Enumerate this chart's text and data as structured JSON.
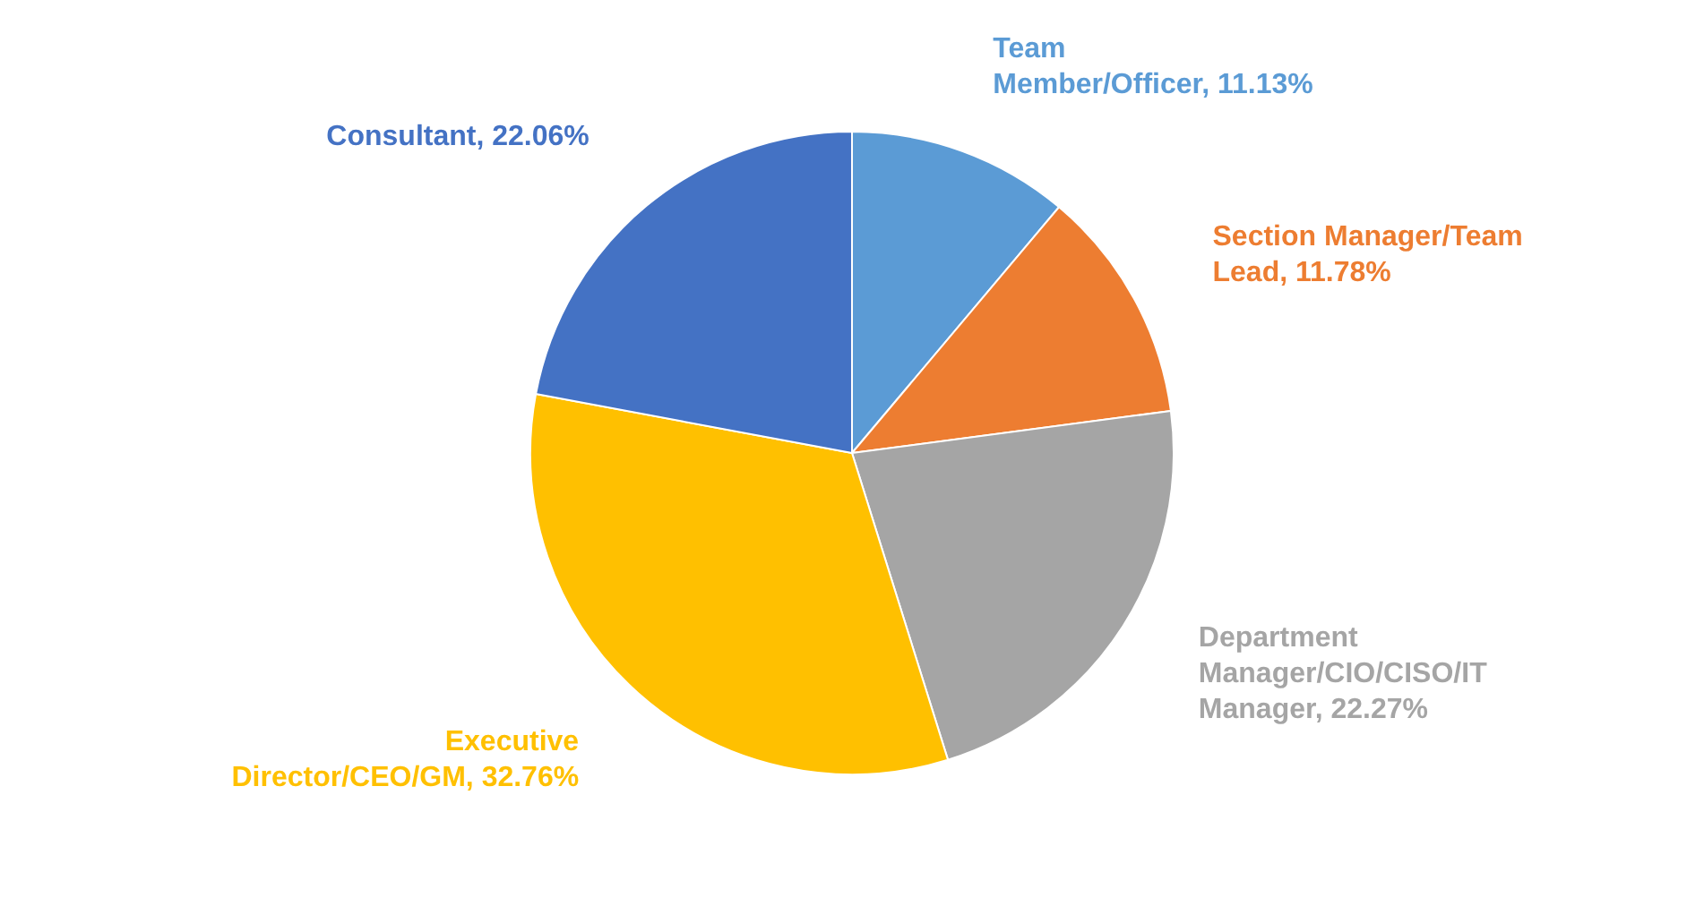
{
  "chart_data": {
    "type": "pie",
    "categories": [
      "Team Member/Officer",
      "Section Manager/Team Lead",
      "Department Manager/CIO/CISO/IT Manager",
      "Executive Director/CEO/GM",
      "Consultant"
    ],
    "values": [
      11.13,
      11.78,
      22.27,
      32.76,
      22.06
    ],
    "value_labels": [
      "11.13%",
      "11.78%",
      "22.27%",
      "32.76%",
      "22.06%"
    ],
    "colors": [
      "#5b9bd5",
      "#ed7d31",
      "#a5a5a5",
      "#ffc000",
      "#4472c4"
    ],
    "legend": false
  }
}
